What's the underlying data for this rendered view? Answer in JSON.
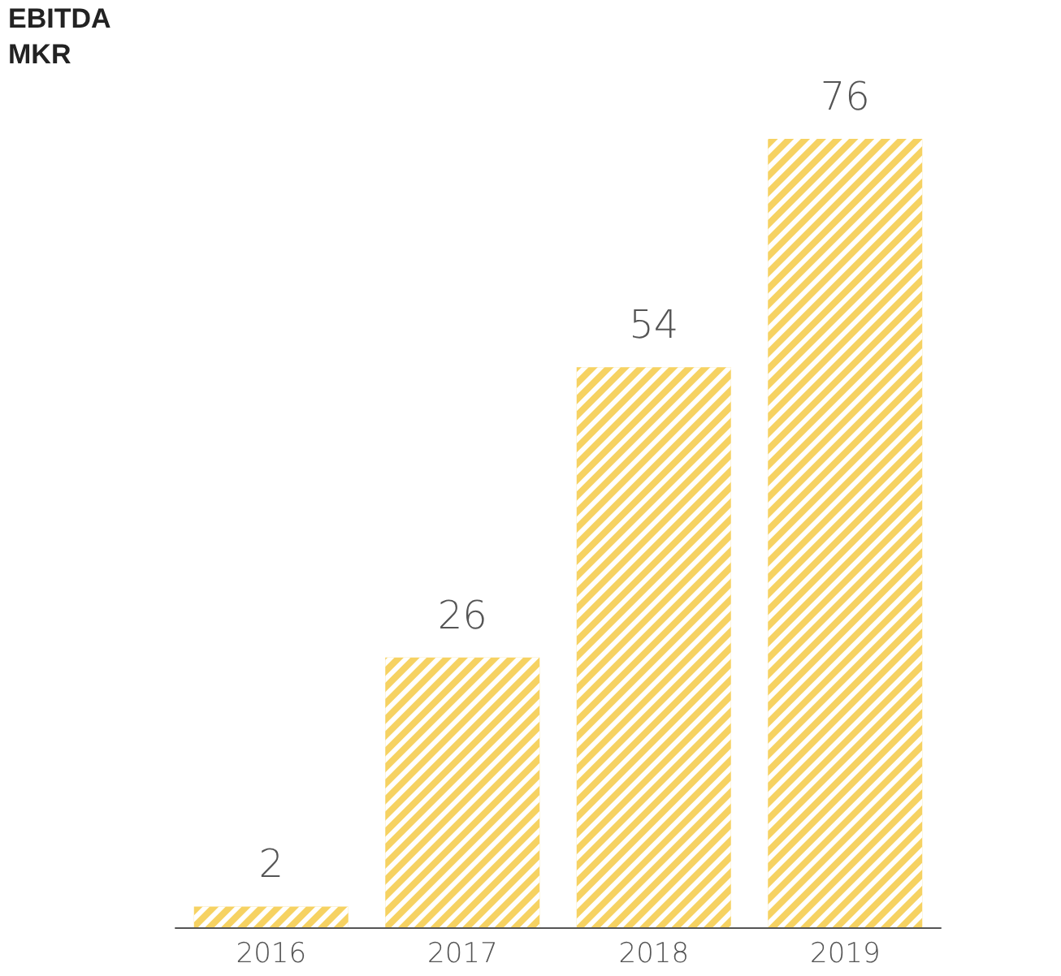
{
  "chart_data": {
    "type": "bar",
    "title": "EBITDA",
    "ylabel": "MKR",
    "categories": [
      "2016",
      "2017",
      "2018",
      "2019"
    ],
    "values": [
      2,
      26,
      54,
      76
    ],
    "color": "#f6d262",
    "data_labels": true
  }
}
